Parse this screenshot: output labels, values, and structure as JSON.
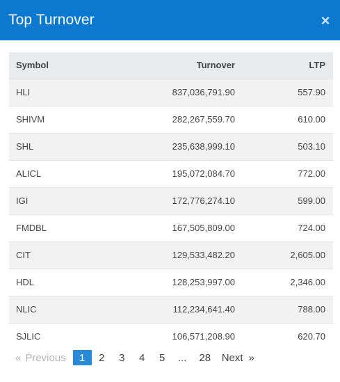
{
  "modal": {
    "title": "Top Turnover",
    "close_icon": "×"
  },
  "table": {
    "headers": {
      "symbol": "Symbol",
      "turnover": "Turnover",
      "ltp": "LTP"
    },
    "rows": [
      {
        "symbol": "HLI",
        "turnover": "837,036,791.90",
        "ltp": "557.90"
      },
      {
        "symbol": "SHIVM",
        "turnover": "282,267,559.70",
        "ltp": "610.00"
      },
      {
        "symbol": "SHL",
        "turnover": "235,638,999.10",
        "ltp": "503.10"
      },
      {
        "symbol": "ALICL",
        "turnover": "195,072,084.70",
        "ltp": "772.00"
      },
      {
        "symbol": "IGI",
        "turnover": "172,776,274.10",
        "ltp": "599.00"
      },
      {
        "symbol": "FMDBL",
        "turnover": "167,505,809.00",
        "ltp": "724.00"
      },
      {
        "symbol": "CIT",
        "turnover": "129,533,482.20",
        "ltp": "2,605.00"
      },
      {
        "symbol": "HDL",
        "turnover": "128,253,997.00",
        "ltp": "2,346.00"
      },
      {
        "symbol": "NLIC",
        "turnover": "112,234,641.40",
        "ltp": "788.00"
      },
      {
        "symbol": "SJLIC",
        "turnover": "106,571,208.90",
        "ltp": "620.70"
      }
    ]
  },
  "pagination": {
    "prev_arrow": "«",
    "prev_label": "Previous",
    "pages": [
      "1",
      "2",
      "3",
      "4",
      "5",
      "...",
      "28"
    ],
    "active_page": "1",
    "next_label": "Next",
    "next_arrow": "»",
    "colors": {
      "active_bg": "#2a8ad8",
      "disabled": "#b5b5b5"
    }
  },
  "colors": {
    "header_bg": "#0b79d0",
    "row_alt": "#f2f2f2",
    "thead_bg": "#e9ecef"
  }
}
